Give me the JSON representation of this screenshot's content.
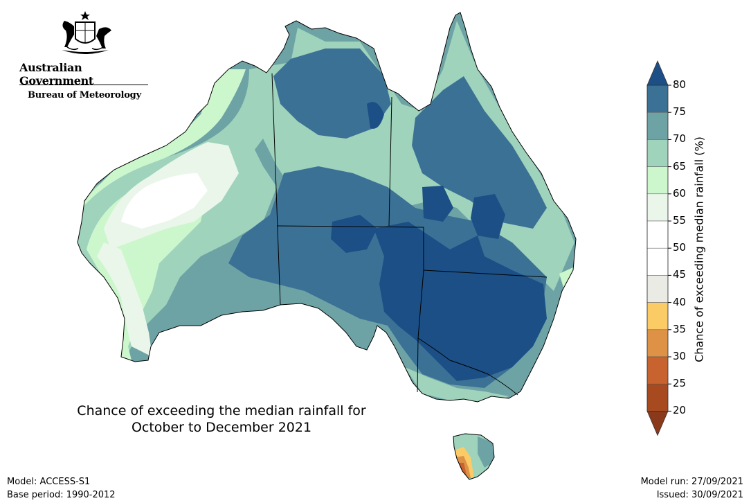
{
  "header": {
    "government": "Australian Government",
    "agency": "Bureau of Meteorology"
  },
  "map": {
    "title_line1": "Chance of exceeding the median rainfall for",
    "title_line2": "October to December 2021",
    "region": "Australia"
  },
  "footer": {
    "model": "Model: ACCESS-S1",
    "base_period": "Base period: 1990-2012",
    "model_run": "Model run: 27/09/2021",
    "issued": "Issued: 30/09/2021"
  },
  "legend": {
    "title": "Chance of exceeding median rainfall (%)",
    "ticks": [
      "20",
      "25",
      "30",
      "35",
      "40",
      "45",
      "50",
      "55",
      "60",
      "65",
      "70",
      "75",
      "80"
    ],
    "colors": {
      "below20": "#8a3a1a",
      "20-25": "#a84a20",
      "25-30": "#c8622e",
      "30-35": "#de9246",
      "35-40": "#fbcc66",
      "40-45": "#ebebe6",
      "45-50": "#ffffff",
      "50-55": "#ffffff",
      "55-60": "#eaf6ea",
      "60-65": "#ccf7cc",
      "65-70": "#9fd3bc",
      "70-75": "#6ea3a6",
      "75-80": "#3c7196",
      "above80": "#1b4f86"
    }
  }
}
